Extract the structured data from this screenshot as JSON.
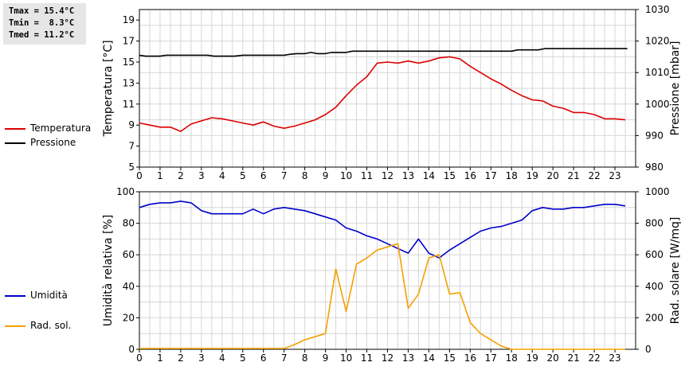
{
  "stats": {
    "tmax": "Tmax = 15.4°C",
    "tmin": "Tmin =  8.3°C",
    "tmed": "Tmed = 11.2°C"
  },
  "colors": {
    "temperature": "#dd0000",
    "pressure": "#000000",
    "humidity": "#0000cc",
    "solar": "#f5a000",
    "grid": "#d6d6d6"
  },
  "chart_data": [
    {
      "type": "line",
      "xlabel": "",
      "ylabel": "Temperatura [°C]",
      "y2label": "Pressione [mbar]",
      "xlim": [
        0,
        24
      ],
      "ylim": [
        5,
        20
      ],
      "y2lim": [
        980,
        1030
      ],
      "xticks": [
        0,
        1,
        2,
        3,
        4,
        5,
        6,
        7,
        8,
        9,
        10,
        11,
        12,
        13,
        14,
        15,
        16,
        17,
        18,
        19,
        20,
        21,
        22,
        23
      ],
      "yticks": [
        5,
        7,
        9,
        11,
        13,
        15,
        17,
        19
      ],
      "y2ticks": [
        980,
        990,
        1000,
        1010,
        1020,
        1030
      ],
      "grid": true,
      "legend_position": "left",
      "series": [
        {
          "name": "Temperatura",
          "axis": "left",
          "x": [
            0,
            0.5,
            1,
            1.5,
            2,
            2.5,
            3,
            3.5,
            4,
            4.5,
            5,
            5.5,
            6,
            6.5,
            7,
            7.5,
            8,
            8.5,
            9,
            9.5,
            10,
            10.5,
            11,
            11.5,
            12,
            12.5,
            13,
            13.5,
            14,
            14.5,
            15,
            15.5,
            16,
            16.5,
            17,
            17.5,
            18,
            18.5,
            19,
            19.5,
            20,
            20.5,
            21,
            21.5,
            22,
            22.5,
            23,
            23.5
          ],
          "y": [
            9.2,
            9.0,
            8.8,
            8.8,
            8.4,
            9.1,
            9.4,
            9.7,
            9.6,
            9.4,
            9.2,
            9.0,
            9.3,
            8.9,
            8.7,
            8.9,
            9.2,
            9.5,
            10.0,
            10.7,
            11.8,
            12.8,
            13.6,
            14.9,
            15.0,
            14.9,
            15.1,
            14.9,
            15.1,
            15.4,
            15.5,
            15.3,
            14.6,
            14.0,
            13.4,
            12.9,
            12.3,
            11.8,
            11.4,
            11.3,
            10.8,
            10.6,
            10.2,
            10.2,
            10.0,
            9.6,
            9.6,
            9.5
          ]
        },
        {
          "name": "Pressione",
          "axis": "right",
          "x": [
            0,
            0.3,
            0.6,
            1,
            1.3,
            1.6,
            2,
            2.3,
            2.6,
            3,
            3.3,
            3.6,
            4,
            4.3,
            4.6,
            5,
            5.3,
            5.6,
            6,
            6.3,
            6.6,
            7,
            7.3,
            7.6,
            8,
            8.3,
            8.6,
            9,
            9.3,
            9.6,
            10,
            10.3,
            10.6,
            11,
            11.3,
            11.6,
            12,
            12.3,
            12.6,
            13,
            13.3,
            13.6,
            14,
            14.3,
            14.6,
            15,
            15.3,
            15.6,
            16,
            16.3,
            16.6,
            17,
            17.3,
            17.6,
            18,
            18.3,
            18.6,
            19,
            19.3,
            19.6,
            20,
            20.3,
            20.6,
            21,
            21.3,
            21.6,
            22,
            22.3,
            22.6,
            23,
            23.3,
            23.6
          ],
          "y": [
            1015.5,
            1015.2,
            1015.2,
            1015.2,
            1015.5,
            1015.5,
            1015.5,
            1015.5,
            1015.5,
            1015.5,
            1015.5,
            1015.2,
            1015.2,
            1015.2,
            1015.2,
            1015.5,
            1015.5,
            1015.5,
            1015.5,
            1015.5,
            1015.5,
            1015.5,
            1015.8,
            1016.0,
            1016.0,
            1016.4,
            1016.0,
            1016.0,
            1016.4,
            1016.4,
            1016.4,
            1016.8,
            1016.8,
            1016.8,
            1016.8,
            1016.8,
            1016.8,
            1016.8,
            1016.8,
            1016.8,
            1016.8,
            1016.8,
            1016.8,
            1016.8,
            1016.8,
            1016.8,
            1016.8,
            1016.8,
            1016.8,
            1016.8,
            1016.8,
            1016.8,
            1016.8,
            1016.8,
            1016.8,
            1017.2,
            1017.2,
            1017.2,
            1017.2,
            1017.6,
            1017.6,
            1017.6,
            1017.6,
            1017.6,
            1017.6,
            1017.6,
            1017.6,
            1017.6,
            1017.6,
            1017.6,
            1017.6,
            1017.6
          ]
        }
      ]
    },
    {
      "type": "line",
      "xlabel": "",
      "ylabel": "Umidità relativa [%]",
      "y2label": "Rad. solare [W/mq]",
      "xlim": [
        0,
        24
      ],
      "ylim": [
        0,
        100
      ],
      "y2lim": [
        0,
        1000
      ],
      "xticks": [
        0,
        1,
        2,
        3,
        4,
        5,
        6,
        7,
        8,
        9,
        10,
        11,
        12,
        13,
        14,
        15,
        16,
        17,
        18,
        19,
        20,
        21,
        22,
        23
      ],
      "yticks": [
        0,
        20,
        40,
        60,
        80,
        100
      ],
      "y2ticks": [
        0,
        200,
        400,
        600,
        800,
        1000
      ],
      "grid": true,
      "legend_position": "left",
      "series": [
        {
          "name": "Umidità",
          "axis": "left",
          "x": [
            0,
            0.5,
            1,
            1.5,
            2,
            2.5,
            3,
            3.5,
            4,
            4.5,
            5,
            5.5,
            6,
            6.5,
            7,
            7.5,
            8,
            8.5,
            9,
            9.5,
            10,
            10.5,
            11,
            11.5,
            12,
            12.5,
            13,
            13.5,
            14,
            14.5,
            15,
            15.5,
            16,
            16.5,
            17,
            17.5,
            18,
            18.5,
            19,
            19.5,
            20,
            20.5,
            21,
            21.5,
            22,
            22.5,
            23,
            23.5
          ],
          "y": [
            90,
            92,
            93,
            93,
            94,
            93,
            88,
            86,
            86,
            86,
            86,
            89,
            86,
            89,
            90,
            89,
            88,
            86,
            84,
            82,
            77,
            75,
            72,
            70,
            67,
            64,
            61,
            70,
            61,
            58,
            63,
            67,
            71,
            75,
            77,
            78,
            80,
            82,
            88,
            90,
            89,
            89,
            90,
            90,
            91,
            92,
            92,
            91
          ]
        },
        {
          "name": "Rad. sol.",
          "axis": "right",
          "x": [
            0,
            1,
            2,
            3,
            4,
            5,
            6,
            7,
            7.5,
            8,
            8.5,
            9,
            9.5,
            10,
            10.5,
            11,
            11.5,
            12,
            12.5,
            13,
            13.5,
            14,
            14.5,
            15,
            15.5,
            16,
            16.5,
            17,
            17.5,
            18,
            19,
            20,
            21,
            22,
            23,
            23.5
          ],
          "y": [
            5,
            5,
            5,
            5,
            5,
            5,
            5,
            5,
            30,
            60,
            80,
            100,
            510,
            240,
            540,
            580,
            630,
            650,
            670,
            260,
            350,
            580,
            600,
            350,
            360,
            170,
            100,
            60,
            20,
            0,
            0,
            0,
            0,
            0,
            0,
            0
          ]
        }
      ]
    }
  ]
}
